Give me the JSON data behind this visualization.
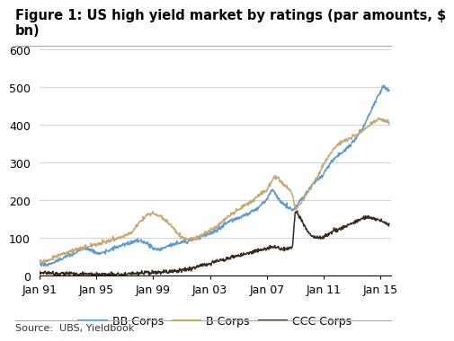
{
  "title_line1": "Figure 1: US high yield market by ratings (par amounts, $",
  "title_line2": "bn)",
  "source": "Source:  UBS, Yieldbook",
  "series_order": [
    "BB Corps",
    "B Corps",
    "CCC Corps"
  ],
  "series": {
    "BB Corps": {
      "color": "#5B9BD5",
      "points": [
        [
          1991.0,
          32
        ],
        [
          1991.3,
          30
        ],
        [
          1991.6,
          28
        ],
        [
          1992.0,
          35
        ],
        [
          1992.5,
          42
        ],
        [
          1993.0,
          52
        ],
        [
          1993.5,
          58
        ],
        [
          1994.0,
          70
        ],
        [
          1994.3,
          72
        ],
        [
          1994.6,
          68
        ],
        [
          1995.0,
          60
        ],
        [
          1995.3,
          58
        ],
        [
          1995.6,
          62
        ],
        [
          1996.0,
          68
        ],
        [
          1996.5,
          75
        ],
        [
          1997.0,
          82
        ],
        [
          1997.5,
          88
        ],
        [
          1998.0,
          92
        ],
        [
          1998.3,
          90
        ],
        [
          1998.6,
          85
        ],
        [
          1999.0,
          72
        ],
        [
          1999.3,
          68
        ],
        [
          1999.6,
          70
        ],
        [
          2000.0,
          78
        ],
        [
          2000.5,
          82
        ],
        [
          2001.0,
          88
        ],
        [
          2001.5,
          92
        ],
        [
          2002.0,
          98
        ],
        [
          2002.5,
          105
        ],
        [
          2003.0,
          112
        ],
        [
          2003.5,
          120
        ],
        [
          2004.0,
          135
        ],
        [
          2004.5,
          145
        ],
        [
          2005.0,
          152
        ],
        [
          2005.5,
          160
        ],
        [
          2006.0,
          170
        ],
        [
          2006.3,
          178
        ],
        [
          2006.6,
          188
        ],
        [
          2007.0,
          200
        ],
        [
          2007.2,
          215
        ],
        [
          2007.4,
          228
        ],
        [
          2007.6,
          218
        ],
        [
          2007.8,
          205
        ],
        [
          2008.0,
          195
        ],
        [
          2008.3,
          185
        ],
        [
          2008.6,
          178
        ],
        [
          2008.8,
          172
        ],
        [
          2009.0,
          180
        ],
        [
          2009.3,
          195
        ],
        [
          2009.6,
          210
        ],
        [
          2010.0,
          230
        ],
        [
          2010.3,
          245
        ],
        [
          2010.6,
          255
        ],
        [
          2011.0,
          268
        ],
        [
          2011.3,
          290
        ],
        [
          2011.6,
          305
        ],
        [
          2012.0,
          318
        ],
        [
          2012.5,
          332
        ],
        [
          2013.0,
          352
        ],
        [
          2013.5,
          375
        ],
        [
          2014.0,
          410
        ],
        [
          2014.3,
          435
        ],
        [
          2014.6,
          460
        ],
        [
          2014.8,
          475
        ],
        [
          2015.0,
          488
        ],
        [
          2015.2,
          505
        ],
        [
          2015.4,
          495
        ],
        [
          2015.6,
          490
        ]
      ]
    },
    "B Corps": {
      "color": "#C8A870",
      "points": [
        [
          1991.0,
          38
        ],
        [
          1991.3,
          36
        ],
        [
          1991.6,
          40
        ],
        [
          1992.0,
          48
        ],
        [
          1992.5,
          55
        ],
        [
          1993.0,
          62
        ],
        [
          1993.5,
          68
        ],
        [
          1994.0,
          72
        ],
        [
          1994.5,
          78
        ],
        [
          1995.0,
          82
        ],
        [
          1995.5,
          88
        ],
        [
          1996.0,
          92
        ],
        [
          1996.5,
          98
        ],
        [
          1997.0,
          105
        ],
        [
          1997.5,
          115
        ],
        [
          1998.0,
          138
        ],
        [
          1998.3,
          152
        ],
        [
          1998.6,
          162
        ],
        [
          1999.0,
          165
        ],
        [
          1999.3,
          162
        ],
        [
          1999.6,
          155
        ],
        [
          2000.0,
          142
        ],
        [
          2000.3,
          132
        ],
        [
          2000.6,
          118
        ],
        [
          2001.0,
          100
        ],
        [
          2001.5,
          95
        ],
        [
          2002.0,
          98
        ],
        [
          2002.5,
          108
        ],
        [
          2003.0,
          118
        ],
        [
          2003.5,
          130
        ],
        [
          2004.0,
          148
        ],
        [
          2004.5,
          162
        ],
        [
          2005.0,
          175
        ],
        [
          2005.5,
          188
        ],
        [
          2006.0,
          198
        ],
        [
          2006.3,
          208
        ],
        [
          2006.6,
          218
        ],
        [
          2007.0,
          228
        ],
        [
          2007.2,
          240
        ],
        [
          2007.4,
          255
        ],
        [
          2007.6,
          262
        ],
        [
          2007.8,
          258
        ],
        [
          2008.0,
          248
        ],
        [
          2008.3,
          238
        ],
        [
          2008.6,
          228
        ],
        [
          2008.8,
          215
        ],
        [
          2009.0,
          175
        ],
        [
          2009.3,
          188
        ],
        [
          2009.6,
          205
        ],
        [
          2010.0,
          228
        ],
        [
          2010.5,
          258
        ],
        [
          2011.0,
          295
        ],
        [
          2011.5,
          325
        ],
        [
          2012.0,
          348
        ],
        [
          2012.5,
          358
        ],
        [
          2013.0,
          368
        ],
        [
          2013.5,
          378
        ],
        [
          2014.0,
          392
        ],
        [
          2014.5,
          408
        ],
        [
          2015.0,
          415
        ],
        [
          2015.3,
          410
        ],
        [
          2015.6,
          405
        ]
      ]
    },
    "CCC Corps": {
      "color": "#3B2A1A",
      "points": [
        [
          1991.0,
          8
        ],
        [
          1991.5,
          7
        ],
        [
          1992.0,
          6
        ],
        [
          1992.5,
          5
        ],
        [
          1993.0,
          5
        ],
        [
          1993.5,
          4
        ],
        [
          1994.0,
          4
        ],
        [
          1994.5,
          4
        ],
        [
          1995.0,
          3
        ],
        [
          1995.5,
          3
        ],
        [
          1996.0,
          3
        ],
        [
          1996.5,
          3
        ],
        [
          1997.0,
          3
        ],
        [
          1997.5,
          4
        ],
        [
          1998.0,
          5
        ],
        [
          1998.5,
          6
        ],
        [
          1999.0,
          7
        ],
        [
          1999.5,
          8
        ],
        [
          2000.0,
          10
        ],
        [
          2000.5,
          12
        ],
        [
          2001.0,
          14
        ],
        [
          2001.5,
          18
        ],
        [
          2002.0,
          22
        ],
        [
          2002.5,
          28
        ],
        [
          2003.0,
          32
        ],
        [
          2003.5,
          38
        ],
        [
          2004.0,
          42
        ],
        [
          2004.5,
          48
        ],
        [
          2005.0,
          52
        ],
        [
          2005.5,
          58
        ],
        [
          2006.0,
          62
        ],
        [
          2006.3,
          66
        ],
        [
          2006.6,
          68
        ],
        [
          2007.0,
          72
        ],
        [
          2007.2,
          74
        ],
        [
          2007.4,
          75
        ],
        [
          2007.6,
          74
        ],
        [
          2007.8,
          74
        ],
        [
          2008.0,
          72
        ],
        [
          2008.3,
          70
        ],
        [
          2008.6,
          72
        ],
        [
          2008.8,
          75
        ],
        [
          2009.0,
          172
        ],
        [
          2009.1,
          165
        ],
        [
          2009.3,
          155
        ],
        [
          2009.6,
          135
        ],
        [
          2010.0,
          108
        ],
        [
          2010.3,
          102
        ],
        [
          2010.6,
          100
        ],
        [
          2011.0,
          102
        ],
        [
          2011.3,
          108
        ],
        [
          2011.6,
          115
        ],
        [
          2012.0,
          122
        ],
        [
          2012.5,
          130
        ],
        [
          2013.0,
          138
        ],
        [
          2013.5,
          148
        ],
        [
          2014.0,
          155
        ],
        [
          2014.5,
          152
        ],
        [
          2015.0,
          145
        ],
        [
          2015.3,
          140
        ],
        [
          2015.6,
          135
        ]
      ]
    }
  },
  "xlim": [
    1991.0,
    2015.75
  ],
  "ylim": [
    0,
    600
  ],
  "yticks": [
    0,
    100,
    200,
    300,
    400,
    500,
    600
  ],
  "xtick_years": [
    1991,
    1995,
    1999,
    2003,
    2007,
    2011,
    2015
  ],
  "xtick_labels": [
    "Jan 91",
    "Jan 95",
    "Jan 99",
    "Jan 03",
    "Jan 07",
    "Jan 11",
    "Jan 15"
  ],
  "background_color": "#ffffff",
  "grid_color": "#cccccc",
  "title_fontsize": 10.5,
  "legend_fontsize": 9,
  "axis_fontsize": 9
}
